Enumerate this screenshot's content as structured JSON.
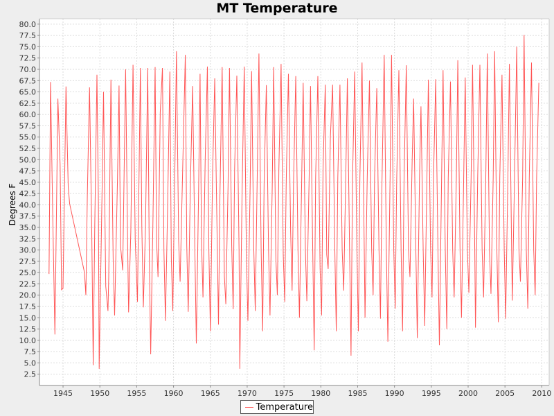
{
  "chart_data": {
    "type": "line",
    "title": "MT Temperature",
    "xlabel": "",
    "ylabel": "Degrees F",
    "xlim": [
      1941.8,
      2011.0
    ],
    "ylim": [
      0.0,
      81.2
    ],
    "x_ticks": [
      "1945",
      "1950",
      "1955",
      "1960",
      "1965",
      "1970",
      "1975",
      "1980",
      "1985",
      "1990",
      "1995",
      "2000",
      "2005",
      "2010"
    ],
    "y_ticks": [
      "2.5",
      "5.0",
      "7.5",
      "10.0",
      "12.5",
      "15.0",
      "17.5",
      "20.0",
      "22.5",
      "25.0",
      "27.5",
      "30.0",
      "32.5",
      "35.0",
      "37.5",
      "40.0",
      "42.5",
      "45.0",
      "47.5",
      "50.0",
      "52.5",
      "55.0",
      "57.5",
      "60.0",
      "62.5",
      "65.0",
      "67.5",
      "70.0",
      "72.5",
      "75.0",
      "77.5",
      "80.0"
    ],
    "grid": true,
    "legend_position": "bottom-center",
    "series": [
      {
        "name": "Temperature",
        "color": "#ff5555",
        "points": [
          [
            1943.1,
            24.7
          ],
          [
            1943.3,
            67.2
          ],
          [
            1943.6,
            38.0
          ],
          [
            1943.9,
            11.3
          ],
          [
            1944.3,
            63.5
          ],
          [
            1944.6,
            49.0
          ],
          [
            1944.8,
            21.2
          ],
          [
            1945.0,
            21.5
          ],
          [
            1945.4,
            66.2
          ],
          [
            1945.7,
            44.0
          ],
          [
            1945.9,
            40.2
          ],
          [
            1947.9,
            25.1
          ],
          [
            1948.1,
            20.0
          ],
          [
            1948.3,
            42.0
          ],
          [
            1948.6,
            66.0
          ],
          [
            1948.9,
            34.0
          ],
          [
            1949.1,
            4.5
          ],
          [
            1949.3,
            35.0
          ],
          [
            1949.6,
            68.8
          ],
          [
            1949.8,
            40.5
          ],
          [
            1949.9,
            3.7
          ],
          [
            1950.3,
            43.0
          ],
          [
            1950.5,
            65.0
          ],
          [
            1950.8,
            22.0
          ],
          [
            1951.1,
            16.5
          ],
          [
            1951.2,
            24.0
          ],
          [
            1951.5,
            67.7
          ],
          [
            1951.8,
            28.0
          ],
          [
            1952.0,
            15.5
          ],
          [
            1952.4,
            46.0
          ],
          [
            1952.6,
            66.4
          ],
          [
            1952.8,
            31.0
          ],
          [
            1953.1,
            25.5
          ],
          [
            1953.5,
            70.0
          ],
          [
            1953.8,
            28.0
          ],
          [
            1953.9,
            16.2
          ],
          [
            1954.2,
            34.0
          ],
          [
            1954.5,
            71.0
          ],
          [
            1954.8,
            32.0
          ],
          [
            1955.1,
            18.5
          ],
          [
            1955.5,
            70.3
          ],
          [
            1955.7,
            35.0
          ],
          [
            1955.9,
            17.3
          ],
          [
            1956.2,
            36.0
          ],
          [
            1956.5,
            70.3
          ],
          [
            1956.7,
            30.0
          ],
          [
            1956.9,
            6.9
          ],
          [
            1957.2,
            36.0
          ],
          [
            1957.5,
            70.5
          ],
          [
            1957.7,
            32.0
          ],
          [
            1957.9,
            24.0
          ],
          [
            1958.2,
            60.5
          ],
          [
            1958.5,
            70.3
          ],
          [
            1958.7,
            30.0
          ],
          [
            1958.9,
            14.3
          ],
          [
            1959.2,
            40.0
          ],
          [
            1959.5,
            69.5
          ],
          [
            1959.7,
            28.0
          ],
          [
            1959.9,
            16.5
          ],
          [
            1960.2,
            50.0
          ],
          [
            1960.4,
            74.0
          ],
          [
            1960.7,
            32.0
          ],
          [
            1960.9,
            23.0
          ],
          [
            1961.3,
            52.0
          ],
          [
            1961.6,
            73.2
          ],
          [
            1961.8,
            31.0
          ],
          [
            1962.0,
            16.3
          ],
          [
            1962.3,
            45.0
          ],
          [
            1962.6,
            66.3
          ],
          [
            1962.9,
            30.0
          ],
          [
            1963.1,
            9.3
          ],
          [
            1963.4,
            42.0
          ],
          [
            1963.6,
            69.0
          ],
          [
            1963.8,
            32.0
          ],
          [
            1964.0,
            19.5
          ],
          [
            1964.3,
            50.0
          ],
          [
            1964.6,
            70.6
          ],
          [
            1964.8,
            30.0
          ],
          [
            1965.0,
            12.0
          ],
          [
            1965.3,
            46.0
          ],
          [
            1965.6,
            68.0
          ],
          [
            1965.8,
            45.3
          ],
          [
            1966.1,
            13.5
          ],
          [
            1966.3,
            42.0
          ],
          [
            1966.6,
            70.5
          ],
          [
            1966.9,
            24.2
          ],
          [
            1967.1,
            18.0
          ],
          [
            1967.4,
            44.0
          ],
          [
            1967.6,
            70.3
          ],
          [
            1967.9,
            31.0
          ],
          [
            1968.1,
            16.9
          ],
          [
            1968.3,
            48.0
          ],
          [
            1968.6,
            68.6
          ],
          [
            1968.9,
            30.0
          ],
          [
            1969.0,
            3.7
          ],
          [
            1969.3,
            42.0
          ],
          [
            1969.6,
            70.6
          ],
          [
            1969.9,
            28.0
          ],
          [
            1970.1,
            14.3
          ],
          [
            1970.4,
            44.0
          ],
          [
            1970.6,
            69.6
          ],
          [
            1970.9,
            30.0
          ],
          [
            1971.1,
            16.5
          ],
          [
            1971.4,
            50.0
          ],
          [
            1971.6,
            73.5
          ],
          [
            1971.9,
            30.0
          ],
          [
            1972.1,
            12.0
          ],
          [
            1972.3,
            45.0
          ],
          [
            1972.6,
            66.5
          ],
          [
            1972.9,
            30.0
          ],
          [
            1973.1,
            15.5
          ],
          [
            1973.4,
            44.0
          ],
          [
            1973.6,
            70.5
          ],
          [
            1973.9,
            28.0
          ],
          [
            1974.1,
            20.0
          ],
          [
            1974.3,
            48.0
          ],
          [
            1974.6,
            71.2
          ],
          [
            1974.9,
            29.0
          ],
          [
            1975.1,
            18.5
          ],
          [
            1975.3,
            45.0
          ],
          [
            1975.6,
            69.0
          ],
          [
            1975.9,
            34.0
          ],
          [
            1976.1,
            21.0
          ],
          [
            1976.3,
            45.0
          ],
          [
            1976.6,
            68.5
          ],
          [
            1976.9,
            30.0
          ],
          [
            1977.1,
            15.0
          ],
          [
            1977.4,
            45.0
          ],
          [
            1977.6,
            67.0
          ],
          [
            1977.9,
            30.0
          ],
          [
            1978.1,
            18.7
          ],
          [
            1978.4,
            45.0
          ],
          [
            1978.6,
            66.3
          ],
          [
            1978.9,
            30.0
          ],
          [
            1979.1,
            7.8
          ],
          [
            1979.3,
            46.0
          ],
          [
            1979.6,
            68.5
          ],
          [
            1979.9,
            26.0
          ],
          [
            1980.1,
            15.5
          ],
          [
            1980.3,
            48.0
          ],
          [
            1980.6,
            66.6
          ],
          [
            1980.8,
            29.0
          ],
          [
            1981.0,
            25.8
          ],
          [
            1981.3,
            55.0
          ],
          [
            1981.6,
            66.6
          ],
          [
            1981.9,
            30.0
          ],
          [
            1982.1,
            12.0
          ],
          [
            1982.3,
            46.0
          ],
          [
            1982.6,
            66.6
          ],
          [
            1982.9,
            30.0
          ],
          [
            1983.1,
            21.0
          ],
          [
            1983.4,
            48.0
          ],
          [
            1983.6,
            68.0
          ],
          [
            1983.9,
            30.0
          ],
          [
            1984.1,
            6.6
          ],
          [
            1984.3,
            45.0
          ],
          [
            1984.6,
            69.5
          ],
          [
            1984.9,
            30.0
          ],
          [
            1985.1,
            12.0
          ],
          [
            1985.3,
            46.0
          ],
          [
            1985.6,
            71.5
          ],
          [
            1985.9,
            30.0
          ],
          [
            1986.0,
            15.0
          ],
          [
            1986.3,
            46.0
          ],
          [
            1986.6,
            67.5
          ],
          [
            1986.9,
            30.0
          ],
          [
            1987.1,
            20.0
          ],
          [
            1987.3,
            46.0
          ],
          [
            1987.6,
            65.8
          ],
          [
            1987.9,
            30.0
          ],
          [
            1988.1,
            14.8
          ],
          [
            1988.3,
            45.0
          ],
          [
            1988.6,
            73.2
          ],
          [
            1988.9,
            30.0
          ],
          [
            1989.1,
            9.7
          ],
          [
            1989.4,
            46.0
          ],
          [
            1989.6,
            73.2
          ],
          [
            1989.9,
            30.0
          ],
          [
            1990.1,
            17.0
          ],
          [
            1990.3,
            45.0
          ],
          [
            1990.6,
            69.8
          ],
          [
            1990.9,
            30.0
          ],
          [
            1991.1,
            12.0
          ],
          [
            1991.3,
            46.0
          ],
          [
            1991.6,
            70.9
          ],
          [
            1991.9,
            30.0
          ],
          [
            1992.1,
            24.0
          ],
          [
            1992.4,
            50.0
          ],
          [
            1992.6,
            63.5
          ],
          [
            1992.9,
            30.0
          ],
          [
            1993.1,
            10.5
          ],
          [
            1993.4,
            46.0
          ],
          [
            1993.6,
            61.8
          ],
          [
            1993.9,
            30.0
          ],
          [
            1994.1,
            13.2
          ],
          [
            1994.4,
            45.0
          ],
          [
            1994.6,
            67.7
          ],
          [
            1994.9,
            30.0
          ],
          [
            1995.1,
            19.5
          ],
          [
            1995.3,
            46.0
          ],
          [
            1995.6,
            67.8
          ],
          [
            1995.9,
            30.0
          ],
          [
            1996.1,
            8.9
          ],
          [
            1996.4,
            46.0
          ],
          [
            1996.6,
            69.8
          ],
          [
            1996.9,
            30.0
          ],
          [
            1997.1,
            12.5
          ],
          [
            1997.3,
            46.0
          ],
          [
            1997.6,
            67.3
          ],
          [
            1997.9,
            30.0
          ],
          [
            1998.1,
            19.5
          ],
          [
            1998.4,
            46.0
          ],
          [
            1998.6,
            72.0
          ],
          [
            1998.9,
            30.0
          ],
          [
            1999.1,
            15.0
          ],
          [
            1999.4,
            46.0
          ],
          [
            1999.6,
            68.2
          ],
          [
            1999.9,
            30.0
          ],
          [
            2000.1,
            20.5
          ],
          [
            2000.4,
            46.0
          ],
          [
            2000.6,
            71.0
          ],
          [
            2000.9,
            30.0
          ],
          [
            2001.0,
            12.8
          ],
          [
            2001.3,
            46.0
          ],
          [
            2001.6,
            71.0
          ],
          [
            2001.9,
            30.0
          ],
          [
            2002.1,
            19.5
          ],
          [
            2002.4,
            46.0
          ],
          [
            2002.6,
            73.5
          ],
          [
            2002.9,
            30.0
          ],
          [
            2003.1,
            20.3
          ],
          [
            2003.4,
            46.0
          ],
          [
            2003.6,
            74.0
          ],
          [
            2003.9,
            30.0
          ],
          [
            2004.1,
            14.0
          ],
          [
            2004.3,
            46.0
          ],
          [
            2004.6,
            68.8
          ],
          [
            2004.9,
            30.0
          ],
          [
            2005.1,
            14.8
          ],
          [
            2005.4,
            46.0
          ],
          [
            2005.6,
            71.2
          ],
          [
            2005.9,
            30.0
          ],
          [
            2006.0,
            18.8
          ],
          [
            2006.3,
            46.0
          ],
          [
            2006.6,
            75.0
          ],
          [
            2006.9,
            30.0
          ],
          [
            2007.1,
            23.0
          ],
          [
            2007.4,
            46.0
          ],
          [
            2007.6,
            77.6
          ],
          [
            2007.9,
            30.0
          ],
          [
            2008.1,
            17.0
          ],
          [
            2008.3,
            46.0
          ],
          [
            2008.6,
            71.5
          ],
          [
            2008.9,
            30.0
          ],
          [
            2009.1,
            20.0
          ],
          [
            2009.3,
            46.0
          ],
          [
            2009.6,
            67.0
          ]
        ]
      }
    ]
  }
}
